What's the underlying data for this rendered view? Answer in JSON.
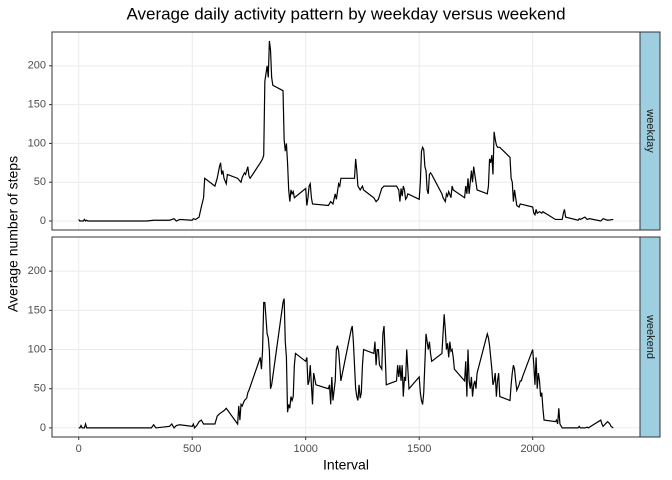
{
  "title": "Average daily activity pattern by weekday versus weekend",
  "x_label": "Interval",
  "y_label": "Average number of steps",
  "chart_data": [
    {
      "type": "line",
      "panel": "weekday",
      "color": "#000000",
      "grid": true,
      "xlim": [
        -117.75,
        2472.75
      ],
      "ylim": [
        -11.6,
        243.6
      ],
      "xticks": [
        0,
        500,
        1000,
        1500,
        2000
      ],
      "yticks": [
        0,
        50,
        100,
        150,
        200
      ],
      "x": [
        0,
        5,
        10,
        15,
        20,
        25,
        30,
        35,
        40,
        55,
        100,
        200,
        300,
        330,
        350,
        400,
        420,
        430,
        445,
        500,
        505,
        515,
        530,
        540,
        550,
        555,
        600,
        610,
        620,
        625,
        630,
        635,
        640,
        650,
        655,
        700,
        715,
        720,
        730,
        735,
        740,
        745,
        750,
        755,
        800,
        810,
        815,
        820,
        825,
        830,
        835,
        840,
        845,
        850,
        855,
        900,
        905,
        910,
        915,
        920,
        925,
        930,
        935,
        940,
        945,
        950,
        1000,
        1005,
        1010,
        1015,
        1020,
        1025,
        1030,
        1100,
        1110,
        1120,
        1130,
        1135,
        1140,
        1145,
        1150,
        1155,
        1200,
        1215,
        1220,
        1225,
        1230,
        1240,
        1250,
        1255,
        1300,
        1310,
        1320,
        1335,
        1345,
        1400,
        1410,
        1415,
        1420,
        1425,
        1430,
        1435,
        1440,
        1445,
        1450,
        1500,
        1505,
        1510,
        1515,
        1520,
        1525,
        1530,
        1535,
        1540,
        1545,
        1550,
        1555,
        1600,
        1605,
        1615,
        1620,
        1625,
        1630,
        1640,
        1645,
        1650,
        1700,
        1705,
        1710,
        1715,
        1720,
        1730,
        1735,
        1740,
        1745,
        1755,
        1800,
        1805,
        1810,
        1815,
        1820,
        1825,
        1830,
        1835,
        1840,
        1845,
        1855,
        1900,
        1905,
        1910,
        1915,
        1920,
        1925,
        1930,
        1940,
        1945,
        2000,
        2005,
        2010,
        2015,
        2020,
        2030,
        2040,
        2045,
        2100,
        2115,
        2130,
        2135,
        2140,
        2145,
        2200,
        2205,
        2210,
        2230,
        2240,
        2250,
        2300,
        2310,
        2330,
        2355
      ],
      "values": [
        2,
        0,
        0,
        0,
        0,
        2,
        0,
        1,
        0,
        0,
        0,
        0,
        0,
        1,
        1,
        1,
        3,
        0,
        2,
        1,
        3,
        2,
        5,
        18,
        30,
        55,
        45,
        55,
        70,
        75,
        60,
        65,
        55,
        48,
        60,
        55,
        50,
        56,
        62,
        60,
        65,
        70,
        58,
        55,
        75,
        80,
        85,
        180,
        190,
        200,
        185,
        232,
        220,
        185,
        175,
        168,
        105,
        90,
        100,
        75,
        40,
        25,
        40,
        35,
        38,
        30,
        42,
        20,
        30,
        45,
        48,
        30,
        22,
        20,
        25,
        22,
        35,
        28,
        38,
        48,
        45,
        55,
        55,
        55,
        80,
        65,
        45,
        40,
        45,
        40,
        30,
        25,
        28,
        42,
        45,
        45,
        40,
        25,
        42,
        32,
        45,
        40,
        28,
        30,
        35,
        28,
        50,
        90,
        95,
        92,
        70,
        65,
        40,
        35,
        60,
        62,
        60,
        35,
        30,
        25,
        35,
        32,
        38,
        30,
        45,
        40,
        30,
        45,
        35,
        55,
        35,
        65,
        50,
        70,
        60,
        40,
        35,
        45,
        80,
        75,
        85,
        60,
        115,
        105,
        98,
        95,
        95,
        82,
        55,
        50,
        25,
        40,
        30,
        20,
        18,
        22,
        18,
        10,
        8,
        15,
        10,
        12,
        10,
        12,
        2,
        2,
        2,
        10,
        15,
        5,
        1,
        3,
        2,
        5,
        2,
        3,
        0,
        3,
        1,
        2
      ]
    },
    {
      "type": "line",
      "panel": "weekend",
      "color": "#000000",
      "grid": true,
      "xlim": [
        -117.75,
        2472.75
      ],
      "ylim": [
        -11.6,
        243.6
      ],
      "xticks": [
        0,
        500,
        1000,
        1500,
        2000
      ],
      "yticks": [
        0,
        50,
        100,
        150,
        200
      ],
      "x": [
        0,
        5,
        10,
        15,
        20,
        25,
        30,
        35,
        40,
        100,
        200,
        300,
        320,
        330,
        340,
        400,
        410,
        420,
        430,
        445,
        500,
        505,
        510,
        520,
        530,
        540,
        550,
        600,
        610,
        620,
        630,
        640,
        650,
        700,
        705,
        710,
        715,
        720,
        730,
        740,
        745,
        750,
        800,
        805,
        810,
        815,
        820,
        825,
        830,
        835,
        840,
        845,
        850,
        900,
        905,
        910,
        915,
        920,
        925,
        930,
        935,
        940,
        945,
        950,
        955,
        1000,
        1005,
        1010,
        1015,
        1020,
        1030,
        1035,
        1045,
        1100,
        1105,
        1110,
        1115,
        1120,
        1130,
        1135,
        1140,
        1145,
        1150,
        1155,
        1200,
        1205,
        1210,
        1215,
        1220,
        1225,
        1230,
        1235,
        1240,
        1245,
        1250,
        1255,
        1300,
        1305,
        1310,
        1315,
        1320,
        1325,
        1335,
        1340,
        1345,
        1350,
        1355,
        1400,
        1405,
        1410,
        1415,
        1420,
        1425,
        1430,
        1435,
        1440,
        1445,
        1450,
        1455,
        1500,
        1505,
        1510,
        1515,
        1520,
        1530,
        1535,
        1540,
        1545,
        1550,
        1555,
        1600,
        1610,
        1615,
        1620,
        1625,
        1630,
        1635,
        1640,
        1645,
        1650,
        1655,
        1700,
        1705,
        1710,
        1715,
        1720,
        1725,
        1730,
        1735,
        1740,
        1745,
        1750,
        1755,
        1800,
        1805,
        1810,
        1815,
        1820,
        1825,
        1830,
        1835,
        1840,
        1845,
        1850,
        1855,
        1900,
        1905,
        1910,
        1915,
        1920,
        1925,
        1930,
        1940,
        1945,
        1950,
        1955,
        2000,
        2005,
        2010,
        2015,
        2020,
        2025,
        2030,
        2035,
        2040,
        2045,
        2050,
        2100,
        2105,
        2110,
        2115,
        2120,
        2130,
        2200,
        2205,
        2210,
        2230,
        2240,
        2245,
        2300,
        2305,
        2310,
        2330,
        2340,
        2345,
        2355
      ],
      "values": [
        0,
        0,
        3,
        0,
        0,
        0,
        5,
        0,
        0,
        0,
        0,
        0,
        0,
        4,
        0,
        2,
        5,
        0,
        3,
        4,
        2,
        5,
        0,
        3,
        8,
        10,
        5,
        5,
        15,
        18,
        20,
        22,
        25,
        5,
        28,
        10,
        30,
        28,
        35,
        38,
        45,
        48,
        90,
        75,
        100,
        160,
        160,
        140,
        120,
        115,
        98,
        50,
        55,
        160,
        165,
        110,
        90,
        20,
        30,
        25,
        40,
        35,
        40,
        80,
        95,
        85,
        90,
        55,
        60,
        80,
        30,
        70,
        55,
        50,
        55,
        30,
        65,
        35,
        60,
        100,
        105,
        98,
        80,
        60,
        125,
        130,
        110,
        80,
        50,
        40,
        35,
        55,
        38,
        45,
        80,
        100,
        95,
        110,
        80,
        100,
        100,
        80,
        75,
        120,
        130,
        95,
        55,
        60,
        80,
        65,
        80,
        60,
        80,
        40,
        65,
        60,
        100,
        75,
        50,
        65,
        45,
        35,
        30,
        45,
        120,
        110,
        100,
        110,
        95,
        85,
        95,
        145,
        125,
        100,
        108,
        90,
        110,
        98,
        100,
        90,
        75,
        60,
        85,
        40,
        100,
        60,
        50,
        65,
        40,
        55,
        60,
        50,
        70,
        120,
        115,
        105,
        90,
        75,
        55,
        60,
        70,
        40,
        60,
        70,
        40,
        35,
        55,
        70,
        80,
        75,
        60,
        48,
        55,
        60,
        60,
        65,
        100,
        80,
        55,
        90,
        50,
        70,
        60,
        40,
        45,
        25,
        10,
        8,
        10,
        5,
        25,
        5,
        0,
        0,
        2,
        0,
        0,
        1,
        0,
        10,
        5,
        2,
        8,
        5,
        2,
        0
      ]
    }
  ]
}
